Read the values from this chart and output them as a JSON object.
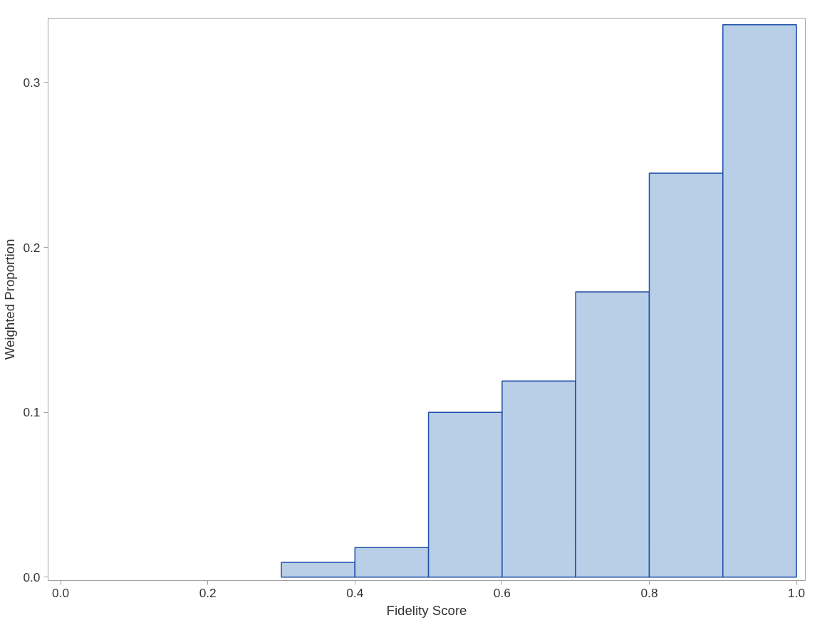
{
  "chart_data": {
    "type": "histogram",
    "xlabel": "Fidelity Score",
    "ylabel": "Weighted Proportion",
    "bins": [
      0.3,
      0.4,
      0.5,
      0.6,
      0.7,
      0.8,
      0.9,
      1.0
    ],
    "values": [
      0.009,
      0.018,
      0.1,
      0.119,
      0.173,
      0.245,
      0.335
    ],
    "color": "#b9cfe7",
    "xlim": [
      -0.017,
      1.012
    ],
    "ylim": [
      -0.002,
      0.339
    ],
    "xticks": [
      {
        "value": 0,
        "label": "0.0"
      },
      0.2,
      0.4,
      0.6,
      0.8,
      {
        "value": 1,
        "label": "1.0"
      }
    ],
    "yticks": [
      {
        "value": 0,
        "label": "0.0"
      },
      0.1,
      0.2,
      0.3
    ],
    "grid": false
  }
}
